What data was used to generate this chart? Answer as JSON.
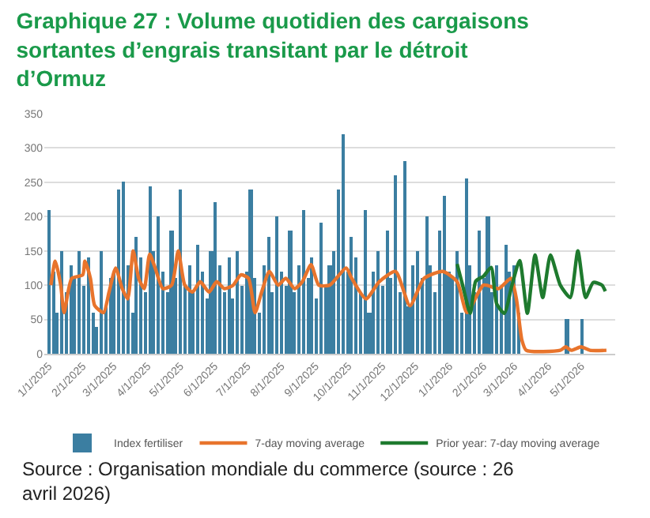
{
  "chart_data": {
    "type": "bar",
    "title": "Graphique 27 : Volume quotidien des cargaisons sortantes d’engrais transitant par le détroit d’Ormuz",
    "annotations": [
      "Source : Organisation mondiale du commerce (source : 26 avril 2026)"
    ],
    "xlim": [
      "2024-12-28",
      "2026-06-01"
    ],
    "ylim": [
      0,
      350
    ],
    "yticks": [
      0,
      50,
      100,
      150,
      200,
      250,
      300,
      350
    ],
    "xticks": [
      {
        "value": "2025-01-01",
        "label": "1/1/2025"
      },
      {
        "value": "2025-02-01",
        "label": "2/1/2025"
      },
      {
        "value": "2025-03-01",
        "label": "3/1/2025"
      },
      {
        "value": "2025-04-01",
        "label": "4/1/2025"
      },
      {
        "value": "2025-05-01",
        "label": "5/1/2025"
      },
      {
        "value": "2025-06-01",
        "label": "6/1/2025"
      },
      {
        "value": "2025-07-01",
        "label": "7/1/2025"
      },
      {
        "value": "2025-08-01",
        "label": "8/1/2025"
      },
      {
        "value": "2025-09-01",
        "label": "9/1/2025"
      },
      {
        "value": "2025-10-01",
        "label": "10/1/2025"
      },
      {
        "value": "2025-11-01",
        "label": "11/1/2025"
      },
      {
        "value": "2025-12-01",
        "label": "12/1/2025"
      },
      {
        "value": "2026-01-01",
        "label": "1/1/2026"
      },
      {
        "value": "2026-02-01",
        "label": "2/1/2026"
      },
      {
        "value": "2026-03-01",
        "label": "3/1/2026"
      },
      {
        "value": "2026-04-01",
        "label": "4/1/2026"
      },
      {
        "value": "2026-05-01",
        "label": "5/1/2026"
      }
    ],
    "grid": "y",
    "legend": "bottom",
    "series": [
      {
        "name": "Index fertiliser",
        "color": "#3b7ea1",
        "x": [
          "2025-01-01",
          "2025-01-05",
          "2025-01-09",
          "2025-01-13",
          "2025-01-17",
          "2025-01-21",
          "2025-01-25",
          "2025-01-29",
          "2025-02-02",
          "2025-02-06",
          "2025-02-10",
          "2025-02-14",
          "2025-02-18",
          "2025-02-22",
          "2025-02-26",
          "2025-03-02",
          "2025-03-06",
          "2025-03-10",
          "2025-03-14",
          "2025-03-18",
          "2025-03-22",
          "2025-03-26",
          "2025-03-30",
          "2025-04-03",
          "2025-04-07",
          "2025-04-11",
          "2025-04-15",
          "2025-04-19",
          "2025-04-23",
          "2025-04-27",
          "2025-05-01",
          "2025-05-05",
          "2025-05-09",
          "2025-05-13",
          "2025-05-17",
          "2025-05-21",
          "2025-05-25",
          "2025-05-29",
          "2025-06-02",
          "2025-06-06",
          "2025-06-10",
          "2025-06-14",
          "2025-06-18",
          "2025-06-22",
          "2025-06-26",
          "2025-06-30",
          "2025-07-04",
          "2025-07-08",
          "2025-07-12",
          "2025-07-16",
          "2025-07-20",
          "2025-07-24",
          "2025-07-28",
          "2025-08-01",
          "2025-08-05",
          "2025-08-09",
          "2025-08-13",
          "2025-08-17",
          "2025-08-21",
          "2025-08-25",
          "2025-08-29",
          "2025-09-02",
          "2025-09-06",
          "2025-09-10",
          "2025-09-14",
          "2025-09-18",
          "2025-09-22",
          "2025-09-26",
          "2025-09-30",
          "2025-10-04",
          "2025-10-08",
          "2025-10-12",
          "2025-10-16",
          "2025-10-20",
          "2025-10-24",
          "2025-10-28",
          "2025-11-01",
          "2025-11-05",
          "2025-11-09",
          "2025-11-13",
          "2025-11-17",
          "2025-11-21",
          "2025-11-25",
          "2025-11-29",
          "2025-12-03",
          "2025-12-07",
          "2025-12-11",
          "2025-12-15",
          "2025-12-19",
          "2025-12-23",
          "2025-12-27",
          "2025-12-31",
          "2026-01-04",
          "2026-01-08",
          "2026-01-12",
          "2026-01-16",
          "2026-01-20",
          "2026-01-24",
          "2026-01-28",
          "2026-02-01",
          "2026-02-05",
          "2026-02-09",
          "2026-02-13",
          "2026-02-17",
          "2026-02-21",
          "2026-02-25",
          "2026-03-01",
          "2026-03-05",
          "2026-04-18",
          "2026-05-02"
        ],
        "values": [
          210,
          120,
          60,
          150,
          90,
          130,
          110,
          150,
          100,
          140,
          60,
          40,
          150,
          70,
          110,
          120,
          240,
          250,
          130,
          60,
          170,
          140,
          90,
          245,
          150,
          200,
          120,
          90,
          180,
          110,
          240,
          100,
          130,
          90,
          160,
          120,
          80,
          150,
          220,
          130,
          90,
          140,
          80,
          150,
          100,
          120,
          240,
          110,
          60,
          130,
          170,
          90,
          200,
          120,
          100,
          180,
          90,
          130,
          210,
          110,
          140,
          80,
          190,
          100,
          130,
          150,
          240,
          320,
          120,
          170,
          140,
          90,
          210,
          60,
          120,
          150,
          100,
          180,
          110,
          260,
          90,
          280,
          70,
          130,
          150,
          110,
          200,
          130,
          90,
          180,
          230,
          120,
          110,
          150,
          60,
          255,
          130,
          90,
          180,
          110,
          200,
          90,
          130,
          100,
          160,
          120,
          130,
          60,
          50,
          50
        ]
      },
      {
        "name": "7-day moving average",
        "type": "line",
        "color": "#e8742c",
        "x": [
          "2025-01-03",
          "2025-01-07",
          "2025-01-12",
          "2025-01-15",
          "2025-01-22",
          "2025-02-01",
          "2025-02-03",
          "2025-02-08",
          "2025-02-12",
          "2025-02-20",
          "2025-02-25",
          "2025-03-03",
          "2025-03-09",
          "2025-03-14",
          "2025-03-19",
          "2025-03-24",
          "2025-03-29",
          "2025-04-03",
          "2025-04-08",
          "2025-04-15",
          "2025-04-23",
          "2025-04-29",
          "2025-05-05",
          "2025-05-12",
          "2025-05-19",
          "2025-05-27",
          "2025-06-03",
          "2025-06-10",
          "2025-06-18",
          "2025-06-25",
          "2025-07-02",
          "2025-07-08",
          "2025-07-14",
          "2025-07-21",
          "2025-07-29",
          "2025-08-05",
          "2025-08-13",
          "2025-08-20",
          "2025-08-28",
          "2025-09-04",
          "2025-09-14",
          "2025-09-29",
          "2025-10-04",
          "2025-10-17",
          "2025-10-29",
          "2025-11-13",
          "2025-11-26",
          "2025-12-09",
          "2025-12-26",
          "2026-01-08",
          "2026-01-17",
          "2026-02-01",
          "2026-02-15",
          "2026-02-26",
          "2026-03-03",
          "2026-03-08",
          "2026-03-12",
          "2026-04-12",
          "2026-04-17",
          "2026-04-22",
          "2026-05-01",
          "2026-05-09",
          "2026-05-24"
        ],
        "values": [
          100,
          135,
          100,
          60,
          110,
          115,
          135,
          110,
          70,
          60,
          90,
          125,
          95,
          80,
          150,
          110,
          95,
          145,
          125,
          95,
          100,
          150,
          100,
          90,
          105,
          90,
          105,
          95,
          100,
          115,
          110,
          60,
          90,
          120,
          100,
          110,
          95,
          105,
          130,
          100,
          100,
          125,
          110,
          80,
          105,
          120,
          70,
          110,
          120,
          105,
          60,
          100,
          95,
          110,
          80,
          20,
          5,
          5,
          10,
          5,
          10,
          5,
          5
        ]
      },
      {
        "name": "Prior year: 7-day moving average",
        "type": "line",
        "color": "#1e7a2e",
        "x": [
          "2026-01-08",
          "2026-01-13",
          "2026-01-20",
          "2026-01-25",
          "2026-02-01",
          "2026-02-08",
          "2026-02-13",
          "2026-02-20",
          "2026-02-27",
          "2026-03-06",
          "2026-03-13",
          "2026-03-20",
          "2026-03-27",
          "2026-04-03",
          "2026-04-12",
          "2026-04-21",
          "2026-04-28",
          "2026-05-05",
          "2026-05-12",
          "2026-05-20",
          "2026-05-23"
        ],
        "values": [
          131,
          100,
          59,
          106,
          113,
          126,
          73,
          59,
          100,
          136,
          59,
          144,
          82,
          144,
          100,
          82,
          150,
          82,
          104,
          100,
          91
        ]
      }
    ]
  }
}
